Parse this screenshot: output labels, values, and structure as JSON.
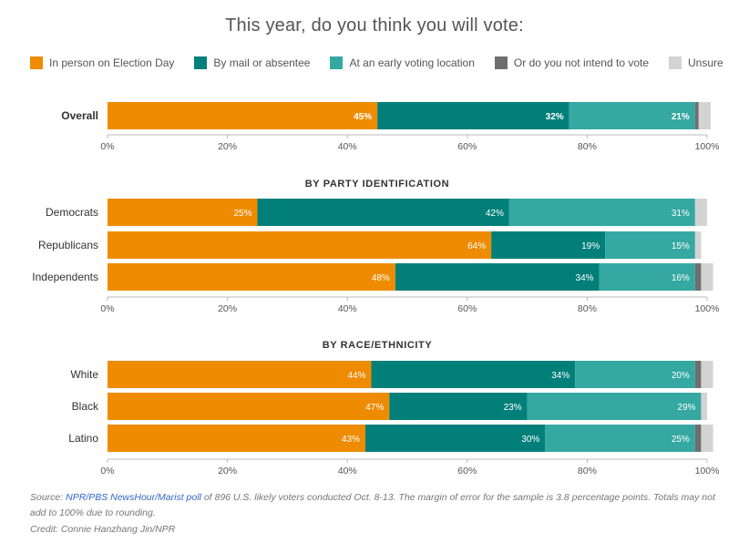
{
  "colors": {
    "in_person": "#ef8b00",
    "mail": "#037f7a",
    "early": "#35a8a2",
    "not_intend": "#6e6e6e",
    "unsure": "#d3d3d3",
    "axis": "#bbbbbb",
    "text": "#333333"
  },
  "chart_data": {
    "type": "bar",
    "title": "This year, do you think you will vote:",
    "orientation": "horizontal-stacked",
    "legend_placement": "top",
    "xlim": [
      0,
      100
    ],
    "x_ticks": [
      "0%",
      "20%",
      "40%",
      "60%",
      "80%",
      "100%"
    ],
    "series": [
      {
        "name": "In person on Election Day",
        "key": "in_person"
      },
      {
        "name": "By mail or absentee",
        "key": "mail"
      },
      {
        "name": "At an early voting location",
        "key": "early"
      },
      {
        "name": "Or do you not intend to vote",
        "key": "not_intend"
      },
      {
        "name": "Unsure",
        "key": "unsure"
      }
    ],
    "panels": [
      {
        "heading": "",
        "rows": [
          {
            "label": "Overall",
            "bold": true,
            "values": [
              45,
              32,
              21,
              0.6,
              2
            ],
            "labels": [
              "45%",
              "32%",
              "21%",
              "",
              ""
            ]
          }
        ]
      },
      {
        "heading": "BY PARTY IDENTIFICATION",
        "rows": [
          {
            "label": "Democrats",
            "bold": false,
            "values": [
              25,
              42,
              31,
              0,
              2
            ],
            "labels": [
              "25%",
              "42%",
              "31%",
              "",
              ""
            ]
          },
          {
            "label": "Republicans",
            "bold": false,
            "values": [
              64,
              19,
              15,
              0,
              1
            ],
            "labels": [
              "64%",
              "19%",
              "15%",
              "",
              ""
            ]
          },
          {
            "label": "Independents",
            "bold": false,
            "values": [
              48,
              34,
              16,
              1,
              2
            ],
            "labels": [
              "48%",
              "34%",
              "16%",
              "",
              ""
            ]
          }
        ]
      },
      {
        "heading": "BY RACE/ETHNICITY",
        "rows": [
          {
            "label": "White",
            "bold": false,
            "values": [
              44,
              34,
              20,
              1,
              2
            ],
            "labels": [
              "44%",
              "34%",
              "20%",
              "",
              ""
            ]
          },
          {
            "label": "Black",
            "bold": false,
            "values": [
              47,
              23,
              29,
              0,
              1
            ],
            "labels": [
              "47%",
              "23%",
              "29%",
              "",
              ""
            ]
          },
          {
            "label": "Latino",
            "bold": false,
            "values": [
              43,
              30,
              25,
              1,
              2
            ],
            "labels": [
              "43%",
              "30%",
              "25%",
              "",
              ""
            ]
          }
        ]
      }
    ]
  },
  "footer": {
    "source_prefix": "Source: ",
    "source_link": "NPR/PBS NewsHour/Marist poll",
    "source_text": " of 896 U.S. likely voters conducted Oct. 8-13. The margin of error for the sample is 3.8 percentage points. Totals may not add to 100% due to rounding.",
    "credit": "Credit: Connie Hanzhang Jin/NPR"
  }
}
